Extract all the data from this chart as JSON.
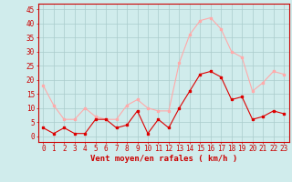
{
  "x": [
    0,
    1,
    2,
    3,
    4,
    5,
    6,
    7,
    8,
    9,
    10,
    11,
    12,
    13,
    14,
    15,
    16,
    17,
    18,
    19,
    20,
    21,
    22,
    23
  ],
  "wind_avg": [
    3,
    1,
    3,
    1,
    1,
    6,
    6,
    3,
    4,
    9,
    1,
    6,
    3,
    10,
    16,
    22,
    23,
    21,
    13,
    14,
    6,
    7,
    9,
    8
  ],
  "wind_gust": [
    18,
    11,
    6,
    6,
    10,
    7,
    6,
    6,
    11,
    13,
    10,
    9,
    9,
    26,
    36,
    41,
    42,
    38,
    30,
    28,
    16,
    19,
    23,
    22
  ],
  "avg_color": "#dd0000",
  "gust_color": "#ffaaaa",
  "bg_color": "#d0ecec",
  "grid_color": "#aacccc",
  "xlabel": "Vent moyen/en rafales ( km/h )",
  "xlabel_color": "#cc0000",
  "ylabel_ticks": [
    0,
    5,
    10,
    15,
    20,
    25,
    30,
    35,
    40,
    45
  ],
  "ylim": [
    -2,
    47
  ],
  "xlim": [
    -0.5,
    23.5
  ],
  "tick_color": "#cc0000",
  "spine_color": "#cc0000",
  "tick_fontsize": 5.5,
  "xlabel_fontsize": 6.5,
  "marker_size": 2.0
}
